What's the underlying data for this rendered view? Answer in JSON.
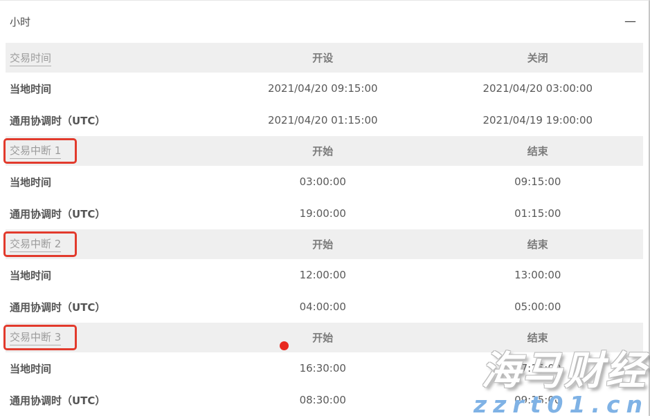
{
  "panel": {
    "title": "小时",
    "collapse_icon": "—"
  },
  "colors": {
    "highlight_red": "#e23a2c",
    "dot_red": "#e8281e",
    "watermark_blue": "#7fb2e5",
    "header_row_bg": "#efefef"
  },
  "table": {
    "sections": [
      {
        "header": {
          "label": "交易时间",
          "col1": "开设",
          "col2": "关闭",
          "highlighted": false
        },
        "rows": [
          {
            "label": "当地时间",
            "col1": "2021/04/20 09:15:00",
            "col2": "2021/04/20 03:00:00"
          },
          {
            "label": "通用协调时（UTC）",
            "col1": "2021/04/20 01:15:00",
            "col2": "2021/04/19 19:00:00"
          }
        ]
      },
      {
        "header": {
          "label": "交易中断 1",
          "col1": "开始",
          "col2": "结束",
          "highlighted": true
        },
        "rows": [
          {
            "label": "当地时间",
            "col1": "03:00:00",
            "col2": "09:15:00"
          },
          {
            "label": "通用协调时（UTC）",
            "col1": "19:00:00",
            "col2": "01:15:00"
          }
        ]
      },
      {
        "header": {
          "label": "交易中断 2",
          "col1": "开始",
          "col2": "结束",
          "highlighted": true
        },
        "rows": [
          {
            "label": "当地时间",
            "col1": "12:00:00",
            "col2": "13:00:00"
          },
          {
            "label": "通用协调时（UTC）",
            "col1": "04:00:00",
            "col2": "05:00:00"
          }
        ]
      },
      {
        "header": {
          "label": "交易中断 3",
          "col1": "开始",
          "col2": "结束",
          "highlighted": true
        },
        "rows": [
          {
            "label": "当地时间",
            "col1": "16:30:00",
            "col2": "17:15:00"
          },
          {
            "label": "通用协调时（UTC）",
            "col1": "08:30:00",
            "col2": "09:15:00"
          }
        ]
      }
    ]
  },
  "watermark": {
    "line1": "海马财经",
    "line2": "zzrt01.cn"
  }
}
